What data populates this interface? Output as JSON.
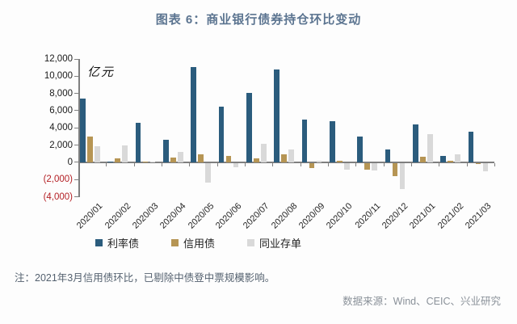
{
  "page": {
    "title": "图表 6：商业银行债券持仓环比变动",
    "note": "注：2021年3月信用债环比，已剔除中债登中票规模影响。",
    "source": "数据来源：Wind、CEIC、兴业研究"
  },
  "chart_data": {
    "type": "bar",
    "title": "图表 6：商业银行债券持仓环比变动",
    "unit_label": "亿元",
    "categories": [
      "2020/01",
      "2020/02",
      "2020/03",
      "2020/04",
      "2020/05",
      "2020/06",
      "2020/07",
      "2020/08",
      "2020/09",
      "2020/10",
      "2020/11",
      "2020/12",
      "2021/01",
      "2021/02",
      "2021/03"
    ],
    "series": [
      {
        "name": "利率债",
        "color": "#2b5c7d",
        "values": [
          7400,
          100,
          4600,
          2600,
          11100,
          6500,
          8100,
          10800,
          5000,
          4800,
          3000,
          1500,
          4400,
          700,
          3600
        ]
      },
      {
        "name": "信用债",
        "color": "#b69554",
        "values": [
          3000,
          450,
          50,
          550,
          950,
          700,
          450,
          900,
          -600,
          200,
          -800,
          -1500,
          600,
          150,
          -150
        ]
      },
      {
        "name": "同业存单",
        "color": "#d9d9d9",
        "values": [
          1900,
          2000,
          50,
          1200,
          -2300,
          -500,
          2150,
          1450,
          200,
          -800,
          -900,
          -3000,
          3250,
          900,
          -1000
        ]
      }
    ],
    "ylim": [
      -4000,
      12000
    ],
    "ytick_step": 2000,
    "ytick_labels": [
      "12,000",
      "10,000",
      "8,000",
      "6,000",
      "4,000",
      "2,000",
      "0",
      "(2,000)",
      "(4,000)"
    ],
    "positive_label_color": "#1a1a1a",
    "negative_label_color": "#b42025",
    "grid": "off",
    "legend_position": "bottom"
  }
}
